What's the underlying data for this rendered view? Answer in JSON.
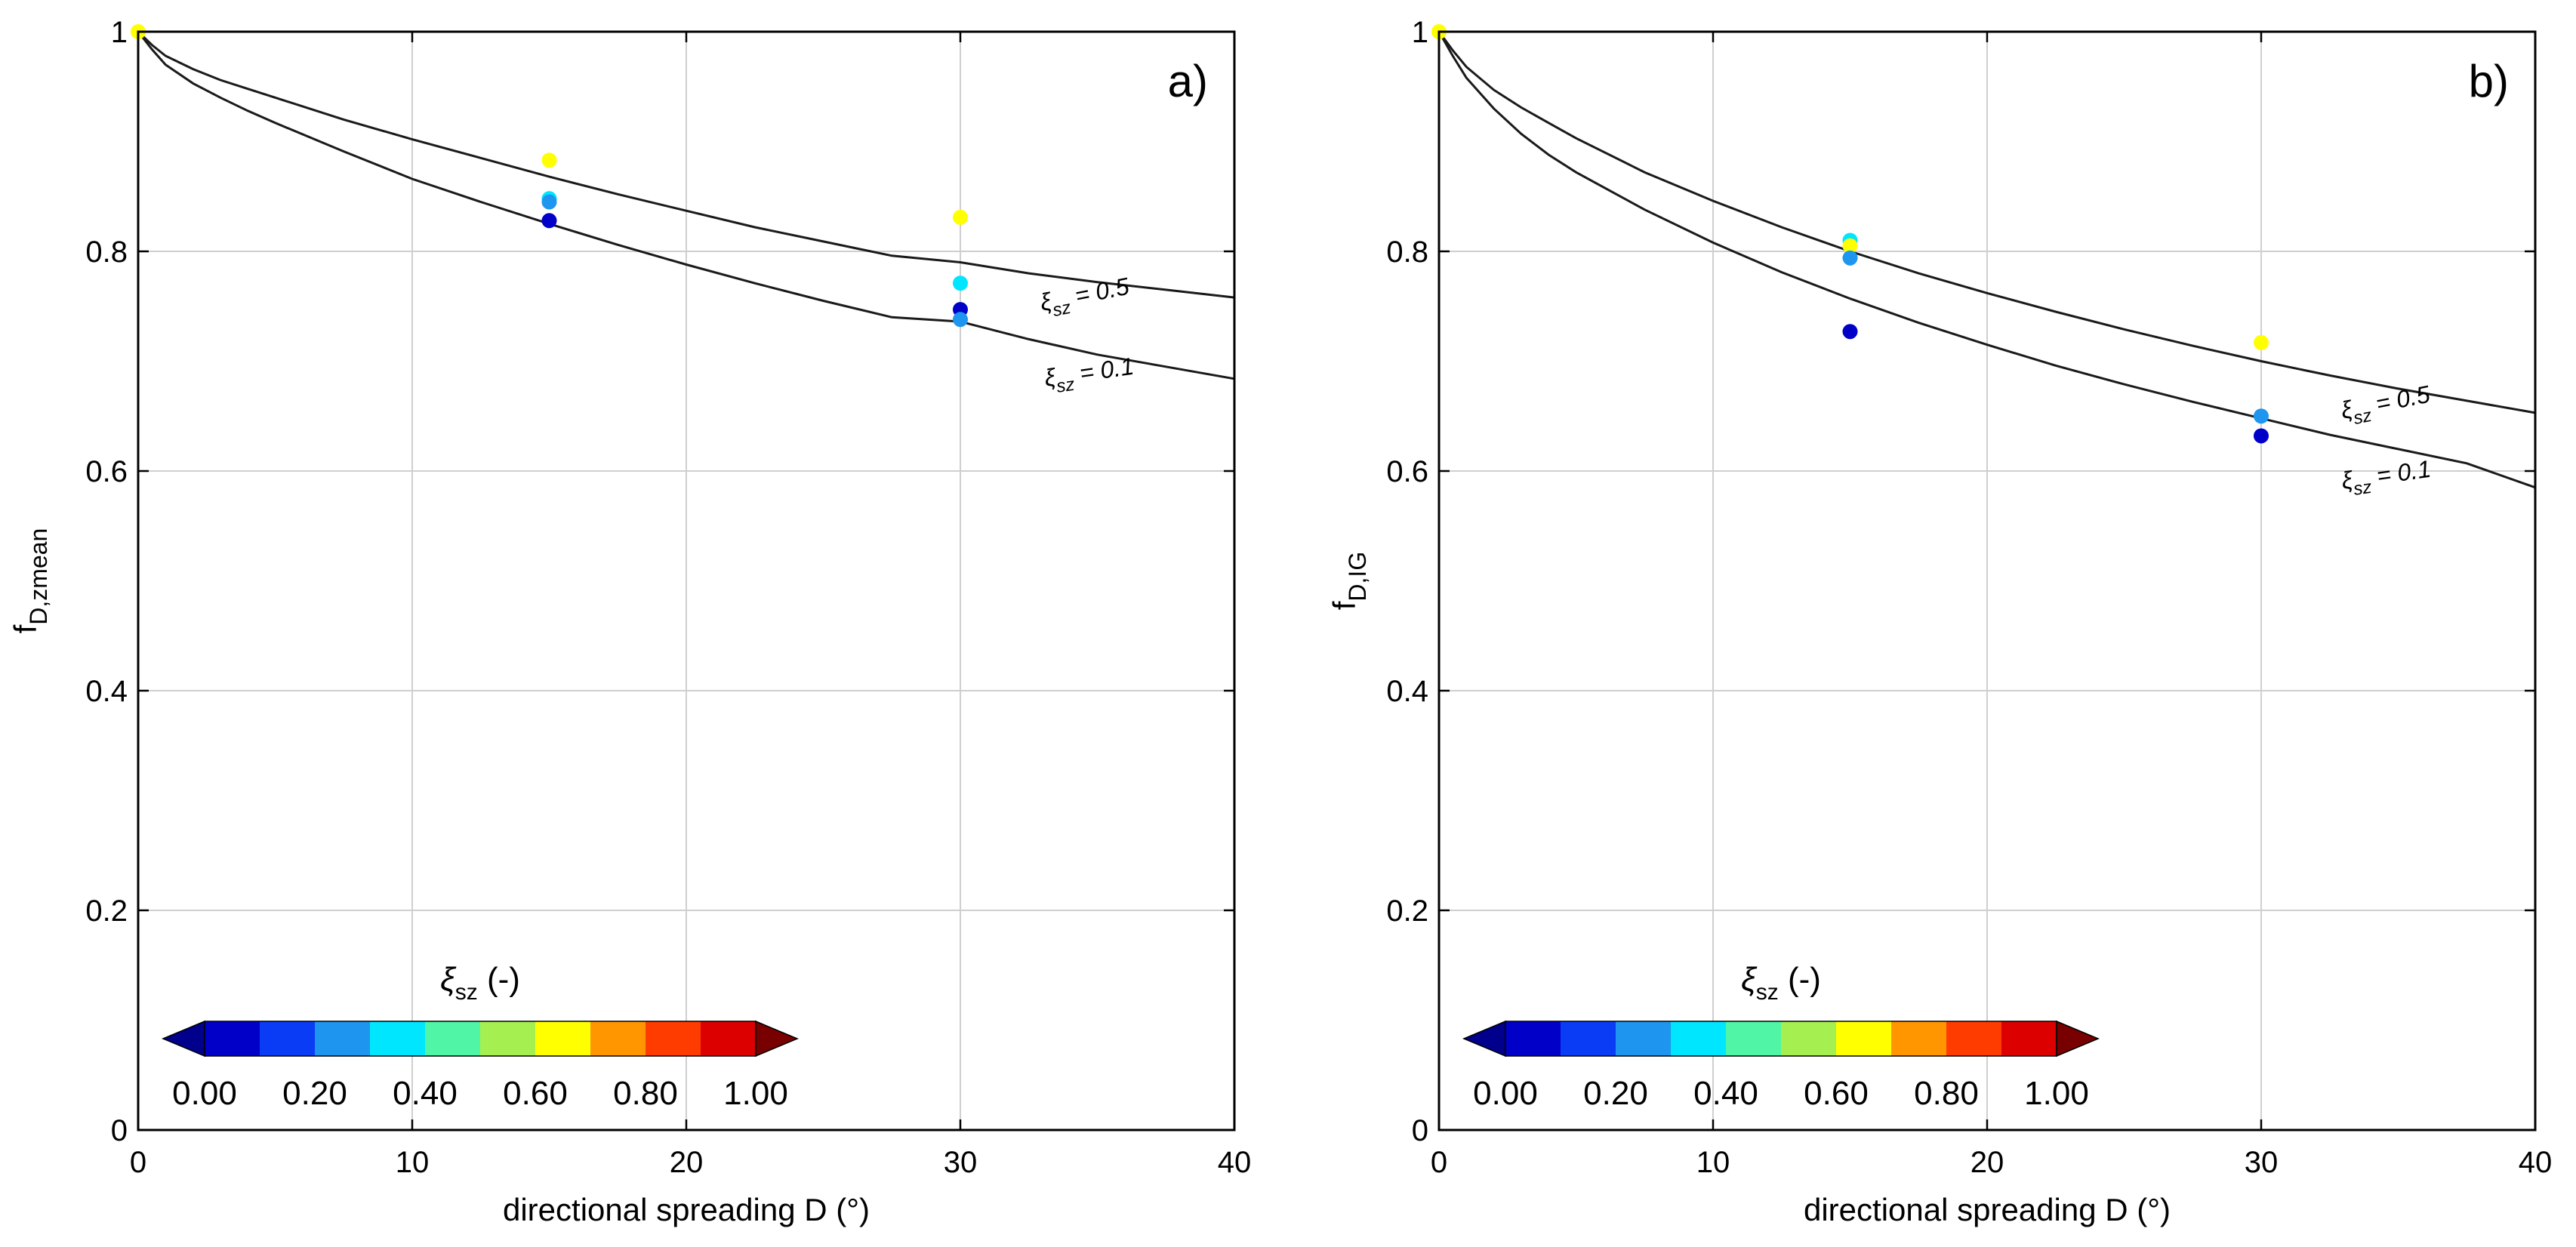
{
  "colorbar": {
    "title_symbol": "ξ",
    "title_sub": "sz",
    "title_suffix": " (-)",
    "tick_labels": [
      "0.00",
      "0.20",
      "0.40",
      "0.60",
      "0.80",
      "1.00"
    ],
    "segment_colors": [
      "#0000c8",
      "#0a3cf5",
      "#1e96f0",
      "#00e6ff",
      "#50f5a5",
      "#a5f050",
      "#ffff00",
      "#ff9600",
      "#ff3c00",
      "#dc0000"
    ],
    "under_color": "#00008c",
    "over_color": "#780000"
  },
  "chart_data": [
    {
      "type": "scatter",
      "panel_label": "a)",
      "xlabel": "directional spreading D (°)",
      "ylabel_main": "f",
      "ylabel_sub": "D,zmean",
      "xlim": [
        0,
        40
      ],
      "ylim": [
        0,
        1
      ],
      "xticks": [
        0,
        10,
        20,
        30,
        40
      ],
      "yticks": [
        0,
        0.2,
        0.4,
        0.6,
        0.8,
        1
      ],
      "xtick_labels": [
        "0",
        "10",
        "20",
        "30",
        "40"
      ],
      "ytick_labels": [
        "0",
        "0.2",
        "0.4",
        "0.6",
        "0.8",
        "1"
      ],
      "grid": true,
      "curves": [
        {
          "name": "xi_sz = 0.5",
          "label_symbol": "ξ",
          "label_sub": "sz",
          "label_value": " = 0.5",
          "x": [
            0,
            0.5,
            1,
            2,
            3,
            4,
            5,
            7.5,
            10,
            12.5,
            15,
            17.5,
            20,
            22.5,
            25,
            27.5,
            30,
            32.5,
            35,
            37.5,
            40
          ],
          "y": [
            1,
            0.988,
            0.978,
            0.966,
            0.956,
            0.948,
            0.94,
            0.92,
            0.902,
            0.885,
            0.868,
            0.852,
            0.837,
            0.822,
            0.809,
            0.796,
            0.79,
            0.78,
            0.772,
            0.765,
            0.758
          ]
        },
        {
          "name": "xi_sz = 0.1",
          "label_symbol": "ξ",
          "label_sub": "sz",
          "label_value": " = 0.1",
          "x": [
            0,
            0.5,
            1,
            2,
            3,
            4,
            5,
            7.5,
            10,
            12.5,
            15,
            17.5,
            20,
            22.5,
            25,
            27.5,
            30,
            32.5,
            35,
            37.5,
            40
          ],
          "y": [
            1,
            0.984,
            0.97,
            0.953,
            0.94,
            0.928,
            0.917,
            0.891,
            0.866,
            0.845,
            0.825,
            0.806,
            0.788,
            0.771,
            0.755,
            0.74,
            0.736,
            0.72,
            0.706,
            0.695,
            0.684
          ]
        }
      ],
      "points": [
        {
          "x": 0,
          "y": 1.0,
          "xi": 0.6
        },
        {
          "x": 15,
          "y": 0.883,
          "xi": 0.6
        },
        {
          "x": 15,
          "y": 0.848,
          "xi": 0.3
        },
        {
          "x": 15,
          "y": 0.845,
          "xi": 0.2
        },
        {
          "x": 15,
          "y": 0.828,
          "xi": 0.05
        },
        {
          "x": 30,
          "y": 0.831,
          "xi": 0.6
        },
        {
          "x": 30,
          "y": 0.771,
          "xi": 0.35
        },
        {
          "x": 30,
          "y": 0.747,
          "xi": 0.05
        },
        {
          "x": 30,
          "y": 0.738,
          "xi": 0.2
        }
      ]
    },
    {
      "type": "scatter",
      "panel_label": "b)",
      "xlabel": "directional spreading D (°)",
      "ylabel_main": "f",
      "ylabel_sub": "D,IG",
      "xlim": [
        0,
        40
      ],
      "ylim": [
        0,
        1
      ],
      "xticks": [
        0,
        10,
        20,
        30,
        40
      ],
      "yticks": [
        0,
        0.2,
        0.4,
        0.6,
        0.8,
        1
      ],
      "xtick_labels": [
        "0",
        "10",
        "20",
        "30",
        "40"
      ],
      "ytick_labels": [
        "0",
        "0.2",
        "0.4",
        "0.6",
        "0.8",
        "1"
      ],
      "grid": true,
      "curves": [
        {
          "name": "xi_sz = 0.5",
          "label_symbol": "ξ",
          "label_sub": "sz",
          "label_value": " = 0.5",
          "x": [
            0,
            0.5,
            1,
            2,
            3,
            4,
            5,
            7.5,
            10,
            12.5,
            15,
            17.5,
            20,
            22.5,
            25,
            27.5,
            30,
            32.5,
            35,
            37.5,
            40
          ],
          "y": [
            1,
            0.983,
            0.968,
            0.947,
            0.931,
            0.917,
            0.903,
            0.872,
            0.846,
            0.822,
            0.8,
            0.78,
            0.762,
            0.745,
            0.729,
            0.714,
            0.7,
            0.687,
            0.675,
            0.664,
            0.653
          ]
        },
        {
          "name": "xi_sz = 0.1",
          "label_symbol": "ξ",
          "label_sub": "sz",
          "label_value": " = 0.1",
          "x": [
            0,
            0.5,
            1,
            2,
            3,
            4,
            5,
            7.5,
            10,
            12.5,
            15,
            17.5,
            20,
            22.5,
            25,
            27.5,
            30,
            32.5,
            35,
            37.5,
            40
          ],
          "y": [
            1,
            0.978,
            0.958,
            0.93,
            0.907,
            0.888,
            0.872,
            0.838,
            0.808,
            0.781,
            0.757,
            0.735,
            0.715,
            0.696,
            0.679,
            0.663,
            0.648,
            0.633,
            0.62,
            0.607,
            0.585
          ]
        }
      ],
      "points": [
        {
          "x": 0,
          "y": 1.0,
          "xi": 0.6
        },
        {
          "x": 15,
          "y": 0.81,
          "xi": 0.35
        },
        {
          "x": 15,
          "y": 0.805,
          "xi": 0.6
        },
        {
          "x": 15,
          "y": 0.794,
          "xi": 0.2
        },
        {
          "x": 15,
          "y": 0.727,
          "xi": 0.05
        },
        {
          "x": 30,
          "y": 0.717,
          "xi": 0.6
        },
        {
          "x": 30,
          "y": 0.65,
          "xi": 0.2
        },
        {
          "x": 30,
          "y": 0.632,
          "xi": 0.05
        }
      ]
    }
  ]
}
